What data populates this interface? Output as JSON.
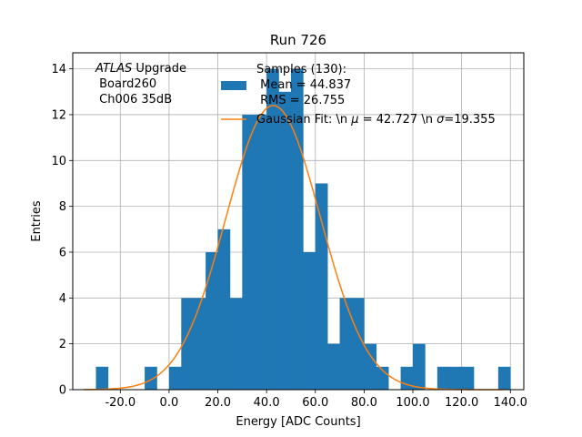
{
  "chart_data": {
    "type": "bar",
    "title": "Run 726",
    "xlabel": "Energy [ADC Counts]",
    "ylabel": "Entries",
    "xlim": [
      -39.5,
      145.5
    ],
    "ylim": [
      0,
      14.7
    ],
    "grid": true,
    "bin_width": 5,
    "xticks": [
      -20,
      0,
      20,
      40,
      60,
      80,
      100,
      120,
      140
    ],
    "xtick_labels": [
      "-20.0",
      "0.0",
      "20.0",
      "40.0",
      "60.0",
      "80.0",
      "100.0",
      "120.0",
      "140.0"
    ],
    "yticks": [
      0,
      2,
      4,
      6,
      8,
      10,
      12,
      14
    ],
    "ytick_labels": [
      "0",
      "2",
      "4",
      "6",
      "8",
      "10",
      "12",
      "14"
    ],
    "bar_color": "#1f77b4",
    "fit_color": "#ff7f0e",
    "bins": [
      {
        "x0": -30,
        "x1": -25,
        "count": 1
      },
      {
        "x0": -10,
        "x1": -5,
        "count": 1
      },
      {
        "x0": 0,
        "x1": 5,
        "count": 1
      },
      {
        "x0": 5,
        "x1": 10,
        "count": 4
      },
      {
        "x0": 10,
        "x1": 15,
        "count": 4
      },
      {
        "x0": 15,
        "x1": 20,
        "count": 6
      },
      {
        "x0": 20,
        "x1": 25,
        "count": 7
      },
      {
        "x0": 25,
        "x1": 30,
        "count": 4
      },
      {
        "x0": 30,
        "x1": 35,
        "count": 12
      },
      {
        "x0": 35,
        "x1": 40,
        "count": 12
      },
      {
        "x0": 40,
        "x1": 45,
        "count": 14
      },
      {
        "x0": 45,
        "x1": 50,
        "count": 13
      },
      {
        "x0": 50,
        "x1": 55,
        "count": 14
      },
      {
        "x0": 55,
        "x1": 60,
        "count": 6
      },
      {
        "x0": 60,
        "x1": 65,
        "count": 9
      },
      {
        "x0": 65,
        "x1": 70,
        "count": 2
      },
      {
        "x0": 70,
        "x1": 75,
        "count": 4
      },
      {
        "x0": 75,
        "x1": 80,
        "count": 4
      },
      {
        "x0": 80,
        "x1": 85,
        "count": 2
      },
      {
        "x0": 85,
        "x1": 90,
        "count": 1
      },
      {
        "x0": 95,
        "x1": 100,
        "count": 1
      },
      {
        "x0": 100,
        "x1": 105,
        "count": 2
      },
      {
        "x0": 110,
        "x1": 115,
        "count": 1
      },
      {
        "x0": 115,
        "x1": 120,
        "count": 1
      },
      {
        "x0": 120,
        "x1": 125,
        "count": 1
      },
      {
        "x0": 135,
        "x1": 140,
        "count": 1
      }
    ],
    "fit": {
      "mu": 42.727,
      "sigma": 19.355,
      "amplitude": 12.4,
      "x_range": [
        -35,
        137
      ]
    },
    "legend": {
      "placement": "top-center",
      "hist_label_lines": [
        "Samples (130):",
        " Mean = 44.837",
        " RMS = 26.755"
      ],
      "fit_label": "Gaussian Fit: \\n $\\mu$ = 42.727 \\n $\\sigma$=19.355",
      "fit_label_prefix": "Gaussian Fit: \\n ",
      "fit_label_mu_symbol": "μ",
      "fit_label_mid": " = 42.727 \\n ",
      "fit_label_sigma_symbol": "σ",
      "fit_label_suffix": "=19.355"
    },
    "annotation": {
      "italic_part": "ATLAS",
      "first_line_rest": " Upgrade",
      "lines": [
        " Board260",
        " Ch006 35dB"
      ]
    }
  }
}
